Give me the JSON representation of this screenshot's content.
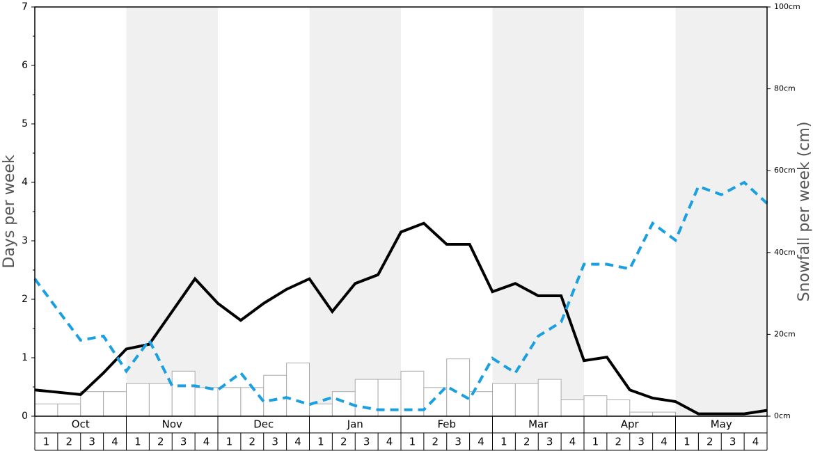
{
  "chart_data": {
    "type": "line",
    "ylabel": "Days per week",
    "y2label": "Snowfall per week (cm)",
    "ylim": [
      0,
      7
    ],
    "yticks": [
      0,
      1,
      2,
      3,
      4,
      5,
      6,
      7
    ],
    "yminorticks": [
      0.5,
      1.5,
      2.5,
      3.5,
      4.5,
      5.5,
      6.5
    ],
    "y2lim": [
      0,
      100
    ],
    "y2ticks": [
      {
        "value": 0,
        "label": "0cm"
      },
      {
        "value": 20,
        "label": "20cm"
      },
      {
        "value": 40,
        "label": "40cm"
      },
      {
        "value": 60,
        "label": "60cm"
      },
      {
        "value": 80,
        "label": "80cm"
      },
      {
        "value": 100,
        "label": "100cm"
      }
    ],
    "months": [
      "Oct",
      "Nov",
      "Dec",
      "Jan",
      "Feb",
      "Mar",
      "Apr",
      "May"
    ],
    "band_color": "#f0f0f0",
    "categories": [
      "1",
      "2",
      "3",
      "4",
      "1",
      "2",
      "3",
      "4",
      "1",
      "2",
      "3",
      "4",
      "1",
      "2",
      "3",
      "4",
      "1",
      "2",
      "3",
      "4",
      "1",
      "2",
      "3",
      "4",
      "1",
      "2",
      "3",
      "4",
      "1",
      "2",
      "3",
      "4"
    ],
    "bars": {
      "axis": "y2",
      "color": "#ffffff",
      "edge_color": "#aaaaaa",
      "values": [
        3,
        3,
        6,
        6,
        8,
        8,
        11,
        7,
        7,
        7,
        10,
        13,
        3,
        6,
        9,
        9,
        11,
        7,
        14,
        6,
        8,
        8,
        9,
        4,
        5,
        4,
        1,
        1,
        0,
        0,
        0,
        0
      ]
    },
    "xlim": [
      0,
      32
    ],
    "x": [
      0,
      1,
      2,
      3,
      4,
      5,
      6,
      7,
      8,
      9,
      10,
      11,
      12,
      13,
      14,
      15,
      16,
      17,
      18,
      19,
      20,
      21,
      22,
      23,
      24,
      25,
      26,
      27,
      28,
      29,
      30,
      31,
      32
    ],
    "series": [
      {
        "color": "#000000",
        "dashed": false,
        "values": [
          0.45,
          0.41,
          0.37,
          0.74,
          1.15,
          1.23,
          1.79,
          2.35,
          1.93,
          1.64,
          1.93,
          2.17,
          2.35,
          1.79,
          2.27,
          2.42,
          3.15,
          3.3,
          2.94,
          2.94,
          2.13,
          2.27,
          2.06,
          2.06,
          0.95,
          1.01,
          0.45,
          0.31,
          0.25,
          0.04,
          0.04,
          0.04,
          0.1
        ]
      },
      {
        "color": "#1a9fe0",
        "dashed": true,
        "values": [
          2.35,
          1.82,
          1.3,
          1.37,
          0.77,
          1.3,
          0.52,
          0.52,
          0.45,
          0.74,
          0.25,
          0.32,
          0.2,
          0.32,
          0.18,
          0.11,
          0.11,
          0.11,
          0.51,
          0.29,
          0.99,
          0.74,
          1.37,
          1.61,
          2.6,
          2.6,
          2.52,
          3.3,
          3.01,
          3.93,
          3.79,
          4.0,
          3.64
        ]
      }
    ]
  }
}
